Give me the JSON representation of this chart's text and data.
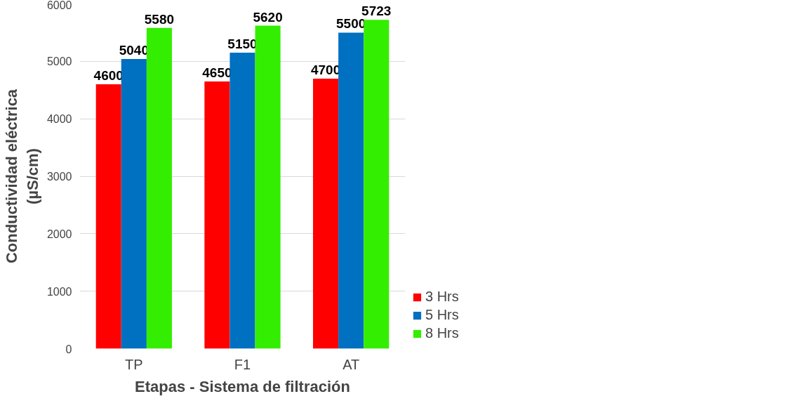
{
  "chart_data": {
    "type": "bar",
    "xlabel": "Etapas - Sistema de filtración",
    "ylabel": "Conductividad eléctrica\n(µS/cm)",
    "categories": [
      "TP",
      "F1",
      "AT"
    ],
    "series": [
      {
        "name": "3 Hrs",
        "color": "#ff0000",
        "values": [
          4600,
          4650,
          4700
        ]
      },
      {
        "name": "5 Hrs",
        "color": "#0070c0",
        "values": [
          5040,
          5150,
          5500
        ]
      },
      {
        "name": "8 Hrs",
        "color": "#33ee00",
        "values": [
          5580,
          5620,
          5723
        ]
      }
    ],
    "ylim": [
      0,
      6000
    ],
    "yticks": [
      0,
      1000,
      2000,
      3000,
      4000,
      5000,
      6000
    ],
    "grid": "y",
    "legend": "right",
    "data_labels": true
  }
}
